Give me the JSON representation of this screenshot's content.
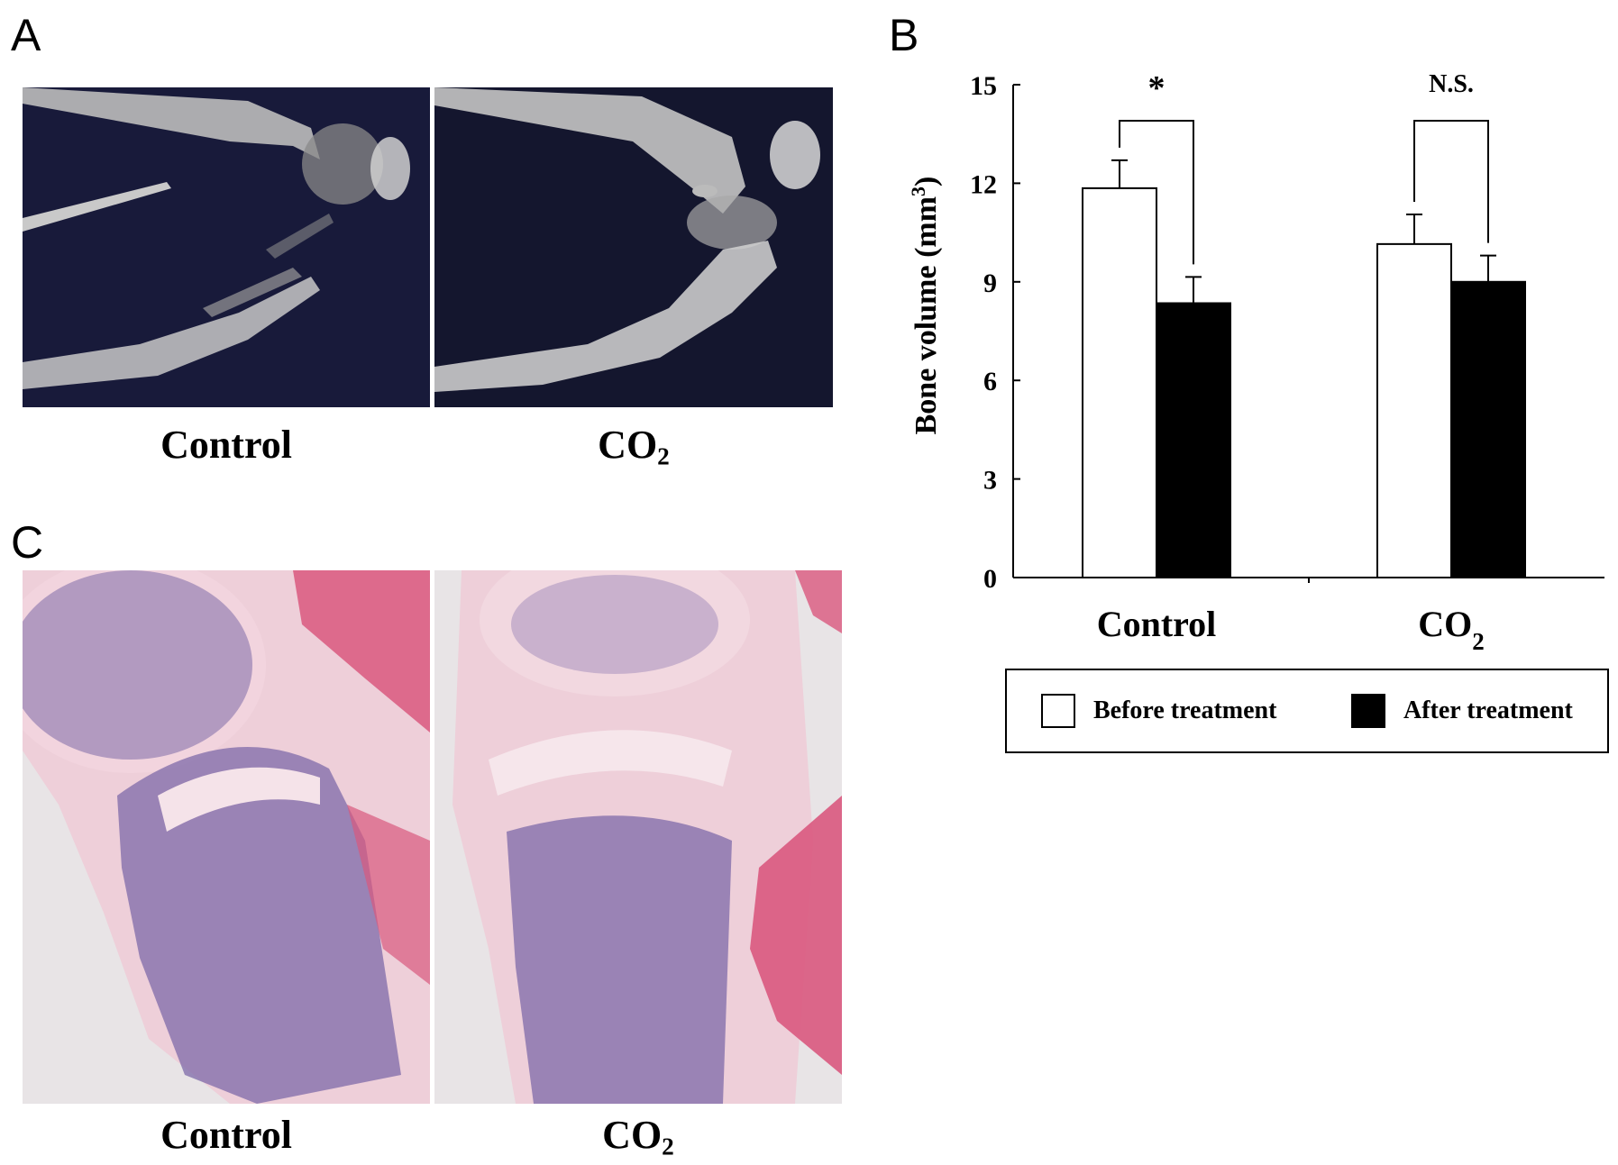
{
  "panel_a": {
    "letter": "A",
    "captions": [
      {
        "text": "Control",
        "sub": ""
      },
      {
        "text": "CO",
        "sub": "2"
      }
    ]
  },
  "panel_b": {
    "letter": "B"
  },
  "panel_c": {
    "letter": "C",
    "captions": [
      {
        "text": "Control",
        "sub": ""
      },
      {
        "text": "CO",
        "sub": "2"
      }
    ]
  },
  "colors": {
    "ct_background": "#181a3a",
    "ct_bone": "#c8c8c8",
    "he_background": "#e8e4e6",
    "he_cartilage": "#eecfd9",
    "he_marrow": "#7d6aa8",
    "he_muscle": "#d9587e"
  },
  "chart_data": {
    "type": "bar",
    "ylabel": "Bone volume (mm",
    "ylabel_sup": "3",
    "ylabel_end": ")",
    "ylim": [
      0,
      15
    ],
    "yticks": [
      0,
      3,
      6,
      9,
      12,
      15
    ],
    "categories": [
      {
        "text": "Control",
        "sub": ""
      },
      {
        "text": "CO",
        "sub": "2"
      }
    ],
    "series": [
      {
        "name": "Before treatment",
        "values": [
          11.85,
          10.15
        ],
        "errors": [
          0.85,
          0.9
        ],
        "color": "#ffffff"
      },
      {
        "name": "After treatment",
        "values": [
          8.35,
          9.0
        ],
        "errors": [
          0.8,
          0.8
        ],
        "color": "#000000"
      }
    ],
    "annotations": [
      "*",
      "N.S."
    ],
    "legend_position": "bottom"
  }
}
